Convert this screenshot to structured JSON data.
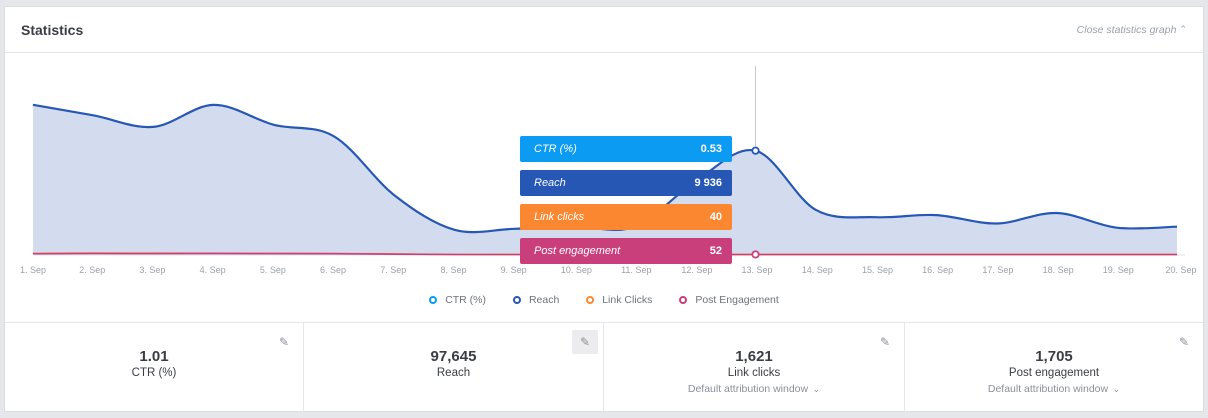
{
  "header": {
    "title": "Statistics",
    "close_label": "Close statistics graph"
  },
  "colors": {
    "ctr": "#0b9bf3",
    "reach": "#2657b4",
    "link_clicks": "#fb8730",
    "post_engagement": "#c93f7c",
    "reach_fill": "#d3dcef"
  },
  "chart_data": {
    "type": "area",
    "x": [
      "1. Sep",
      "2. Sep",
      "3. Sep",
      "4. Sep",
      "5. Sep",
      "6. Sep",
      "7. Sep",
      "8. Sep",
      "9. Sep",
      "10. Sep",
      "11. Sep",
      "12. Sep",
      "13. Sep",
      "14. Sep",
      "15. Sep",
      "16. Sep",
      "17. Sep",
      "18. Sep",
      "19. Sep",
      "20. Sep"
    ],
    "ylim": [
      0,
      18000
    ],
    "grid": false,
    "legend_position": "bottom-center",
    "series": [
      {
        "name": "CTR (%)",
        "key": "ctr",
        "values": [
          0.9,
          1.1,
          1.0,
          1.2,
          1.0,
          1.1,
          0.8,
          0.6,
          0.7,
          0.6,
          0.5,
          0.6,
          0.53,
          0.7,
          0.6,
          0.7,
          0.6,
          0.7,
          0.6,
          0.7
        ]
      },
      {
        "name": "Reach",
        "key": "reach",
        "values": [
          14300,
          13300,
          12200,
          14300,
          12400,
          11300,
          5700,
          2400,
          2500,
          2700,
          2700,
          7000,
          9936,
          4300,
          3600,
          3800,
          3000,
          4000,
          2600,
          2700
        ]
      },
      {
        "name": "Link Clicks",
        "key": "link_clicks",
        "values": [
          150,
          180,
          170,
          160,
          150,
          140,
          100,
          50,
          40,
          40,
          40,
          35,
          40,
          40,
          40,
          40,
          40,
          40,
          40,
          40
        ]
      },
      {
        "name": "Post Engagement",
        "key": "post_engagement",
        "values": [
          120,
          140,
          130,
          150,
          130,
          120,
          80,
          50,
          45,
          45,
          45,
          45,
          52,
          50,
          45,
          45,
          45,
          45,
          45,
          45
        ]
      }
    ],
    "hover": {
      "category": "13. Sep",
      "ctr": "0.53",
      "reach": "9 936",
      "link_clicks": "40",
      "post_engagement": "52"
    }
  },
  "tooltip": [
    {
      "label": "CTR (%)",
      "value": "0.53"
    },
    {
      "label": "Reach",
      "value": "9 936"
    },
    {
      "label": "Link clicks",
      "value": "40"
    },
    {
      "label": "Post engagement",
      "value": "52"
    }
  ],
  "legend": [
    {
      "label": "CTR (%)",
      "color": "#0b9bf3"
    },
    {
      "label": "Reach",
      "color": "#2657b4"
    },
    {
      "label": "Link Clicks",
      "color": "#fb8730"
    },
    {
      "label": "Post Engagement",
      "color": "#c93f7c"
    }
  ],
  "stats": [
    {
      "value": "1.01",
      "label": "CTR (%)",
      "sub": ""
    },
    {
      "value": "97,645",
      "label": "Reach",
      "sub": ""
    },
    {
      "value": "1,621",
      "label": "Link clicks",
      "sub": "Default attribution window"
    },
    {
      "value": "1,705",
      "label": "Post engagement",
      "sub": "Default attribution window"
    }
  ],
  "icons": {
    "edit": "pencil-icon",
    "chevron_up": "chevron-up-icon",
    "chevron_down": "chevron-down-icon"
  }
}
